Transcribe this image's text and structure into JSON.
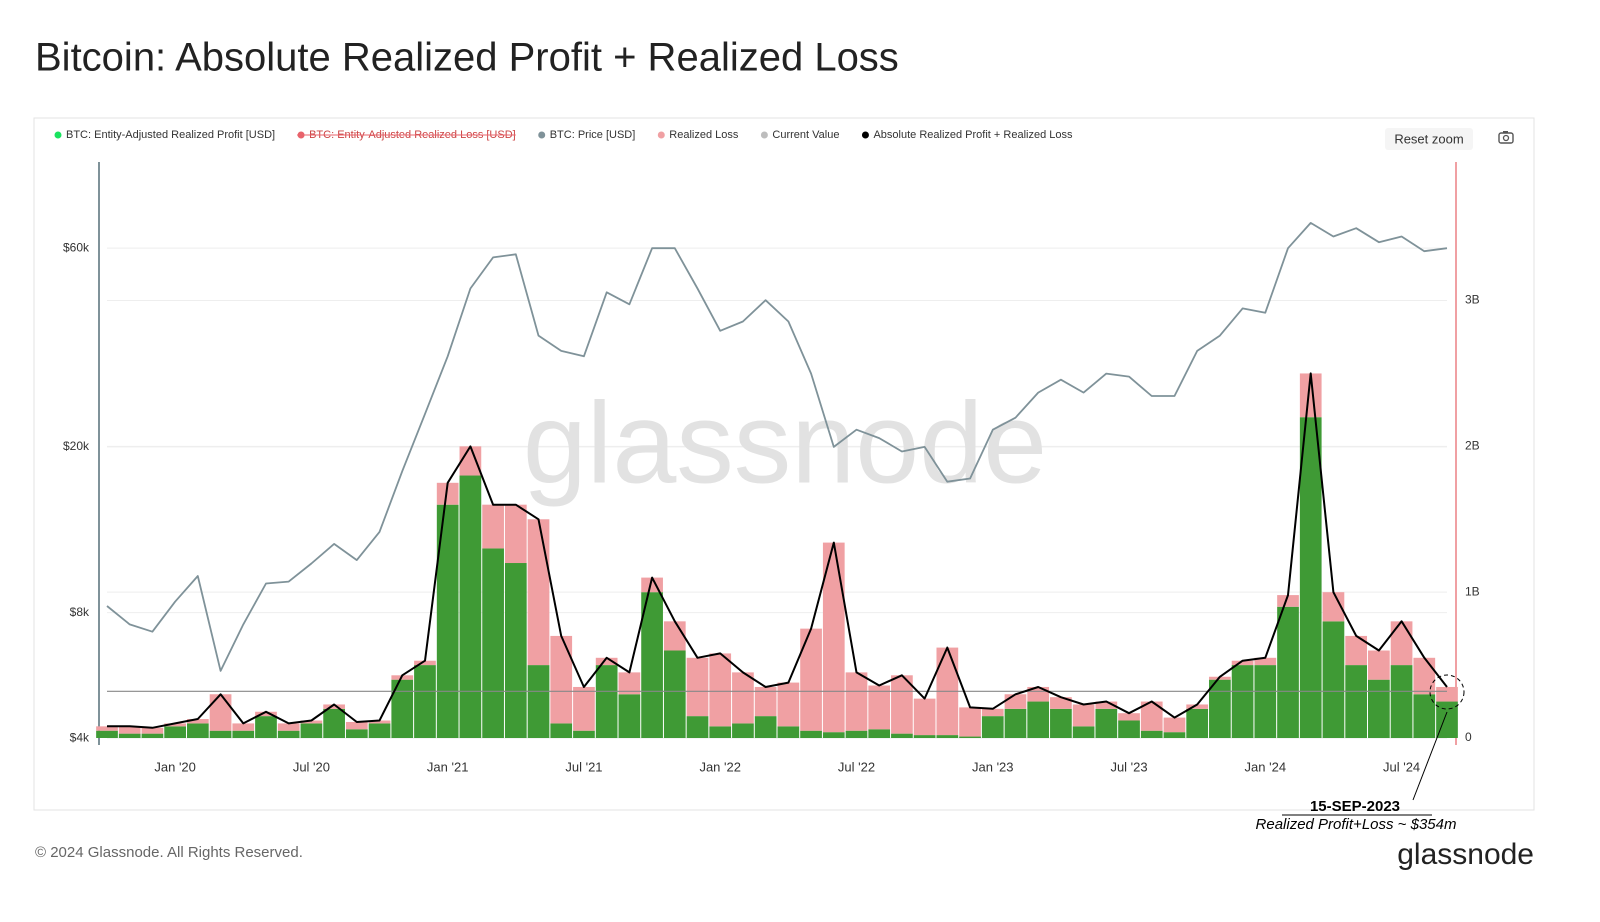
{
  "title": "Bitcoin: Absolute Realized Profit + Realized Loss",
  "button": "Reset zoom",
  "watermark": "glassnode",
  "copyright": "© 2024 Glassnode. All Rights Reserved.",
  "logo": "glassnode",
  "chart_data": {
    "type": "combo",
    "x": [
      "2019-10",
      "2019-11",
      "2019-12",
      "2020-01",
      "2020-02",
      "2020-03",
      "2020-04",
      "2020-05",
      "2020-06",
      "2020-07",
      "2020-08",
      "2020-09",
      "2020-10",
      "2020-11",
      "2020-12",
      "2021-01",
      "2021-02",
      "2021-03",
      "2021-04",
      "2021-05",
      "2021-06",
      "2021-07",
      "2021-08",
      "2021-09",
      "2021-10",
      "2021-11",
      "2021-12",
      "2022-01",
      "2022-02",
      "2022-03",
      "2022-04",
      "2022-05",
      "2022-06",
      "2022-07",
      "2022-08",
      "2022-09",
      "2022-10",
      "2022-11",
      "2022-12",
      "2023-01",
      "2023-02",
      "2023-03",
      "2023-04",
      "2023-05",
      "2023-06",
      "2023-07",
      "2023-08",
      "2023-09",
      "2023-10",
      "2023-11",
      "2023-12",
      "2024-01",
      "2024-02",
      "2024-03",
      "2024-04",
      "2024-05",
      "2024-06",
      "2024-07",
      "2024-08",
      "2024-09"
    ],
    "xlim": [
      "2019-10",
      "2024-09"
    ],
    "xticks": [
      {
        "value": "2020-01",
        "label": "Jan '20"
      },
      {
        "value": "2020-07",
        "label": "Jul '20"
      },
      {
        "value": "2021-01",
        "label": "Jan '21"
      },
      {
        "value": "2021-07",
        "label": "Jul '21"
      },
      {
        "value": "2022-01",
        "label": "Jan '22"
      },
      {
        "value": "2022-07",
        "label": "Jul '22"
      },
      {
        "value": "2023-01",
        "label": "Jan '23"
      },
      {
        "value": "2023-07",
        "label": "Jul '23"
      },
      {
        "value": "2024-01",
        "label": "Jan '24"
      },
      {
        "value": "2024-07",
        "label": "Jul '24"
      }
    ],
    "ylog": true,
    "ylim": [
      3850,
      96600
    ],
    "yticks": [
      {
        "value": 4000,
        "label": "$4k"
      },
      {
        "value": 8000,
        "label": "$8k"
      },
      {
        "value": 20000,
        "label": "$20k"
      },
      {
        "value": 60000,
        "label": "$60k"
      }
    ],
    "y2lim": [
      -48000000,
      3950000000
    ],
    "y2ticks": [
      0,
      {
        "value": 1000000000,
        "label": "1B"
      },
      {
        "value": 2000000000,
        "label": "2B"
      },
      {
        "value": 3000000000,
        "label": "3B"
      }
    ],
    "grid": true,
    "series": [
      {
        "name": "BTC: Entity-Adjusted Realized Profit [USD]",
        "color": "#3f9a35",
        "legend_color": "#19e35f",
        "style": "bar",
        "axis": "y2",
        "values": [
          50000000.0,
          30000000.0,
          30000000.0,
          80000000.0,
          100000000.0,
          50000000.0,
          50000000.0,
          150000000.0,
          50000000.0,
          100000000.0,
          200000000.0,
          60000000.0,
          100000000.0,
          400000000.0,
          500000000.0,
          1600000000.0,
          1800000000.0,
          1300000000.0,
          1200000000.0,
          500000000.0,
          100000000.0,
          50000000.0,
          500000000.0,
          300000000.0,
          1000000000.0,
          600000000.0,
          150000000.0,
          80000000.0,
          100000000.0,
          150000000.0,
          80000000.0,
          50000000.0,
          40000000.0,
          50000000.0,
          60000000.0,
          30000000.0,
          20000000.0,
          20000000.0,
          10000000.0,
          150000000.0,
          200000000.0,
          250000000.0,
          200000000.0,
          80000000.0,
          200000000.0,
          120000000.0,
          50000000.0,
          40000000.0,
          200000000.0,
          400000000.0,
          500000000.0,
          500000000.0,
          900000000.0,
          2200000000.0,
          800000000.0,
          500000000.0,
          400000000.0,
          500000000.0,
          300000000.0,
          250000000.0
        ]
      },
      {
        "name": "BTC: Entity-Adjusted Realized Loss [USD]",
        "color": "#e8636b",
        "hidden": true
      },
      {
        "name": "BTC: Price [USD]",
        "color": "#7f9299",
        "style": "line",
        "axis": "y",
        "values": [
          8300,
          7500,
          7200,
          8500,
          9800,
          5800,
          7500,
          9400,
          9500,
          10500,
          11700,
          10700,
          12500,
          17500,
          24000,
          33000,
          48000,
          57000,
          58000,
          37000,
          34000,
          33000,
          47000,
          44000,
          60000,
          60000,
          48000,
          38000,
          40000,
          45000,
          40000,
          30000,
          20000,
          22000,
          21000,
          19500,
          20000,
          16500,
          16800,
          22000,
          23500,
          27000,
          29000,
          27000,
          30000,
          29500,
          26500,
          26500,
          34000,
          37000,
          43000,
          42000,
          60000,
          69000,
          64000,
          67000,
          62000,
          64000,
          59000,
          60000
        ]
      },
      {
        "name": "Realized Loss",
        "color": "#f0a0a3",
        "style": "bar",
        "stacked": true,
        "axis": "y2",
        "values": [
          30000000.0,
          50000000.0,
          40000000.0,
          20000000.0,
          30000000.0,
          250000000.0,
          50000000.0,
          30000000.0,
          50000000.0,
          20000000.0,
          30000000.0,
          50000000.0,
          20000000.0,
          30000000.0,
          30000000.0,
          150000000.0,
          200000000.0,
          300000000.0,
          400000000.0,
          1000000000.0,
          600000000.0,
          300000000.0,
          50000000.0,
          150000000.0,
          100000000.0,
          200000000.0,
          400000000.0,
          500000000.0,
          350000000.0,
          200000000.0,
          300000000.0,
          700000000.0,
          1300000000.0,
          400000000.0,
          300000000.0,
          400000000.0,
          250000000.0,
          600000000.0,
          200000000.0,
          50000000.0,
          100000000.0,
          100000000.0,
          80000000.0,
          150000000.0,
          50000000.0,
          50000000.0,
          200000000.0,
          100000000.0,
          30000000.0,
          20000000.0,
          30000000.0,
          50000000.0,
          80000000.0,
          300000000.0,
          200000000.0,
          200000000.0,
          200000000.0,
          300000000.0,
          250000000.0,
          100000000.0
        ]
      },
      {
        "name": "Current Value",
        "color": "#bdbdbd",
        "style": "hline",
        "axis": "y2",
        "value": 320000000.0
      },
      {
        "name": "Absolute Realized Profit + Realized Loss",
        "color": "#000000",
        "style": "line",
        "axis": "y2",
        "values": [
          80000000.0,
          80000000.0,
          70000000.0,
          100000000.0,
          130000000.0,
          300000000.0,
          100000000.0,
          180000000.0,
          100000000.0,
          120000000.0,
          230000000.0,
          110000000.0,
          120000000.0,
          430000000.0,
          530000000.0,
          1750000000.0,
          2000000000.0,
          1600000000.0,
          1600000000.0,
          1500000000.0,
          700000000.0,
          350000000.0,
          550000000.0,
          450000000.0,
          1100000000.0,
          800000000.0,
          550000000.0,
          580000000.0,
          450000000.0,
          350000000.0,
          380000000.0,
          750000000.0,
          1340000000.0,
          450000000.0,
          360000000.0,
          430000000.0,
          270000000.0,
          620000000.0,
          210000000.0,
          200000000.0,
          300000000.0,
          350000000.0,
          280000000.0,
          230000000.0,
          250000000.0,
          170000000.0,
          250000000.0,
          140000000.0,
          230000000.0,
          420000000.0,
          530000000.0,
          550000000.0,
          980000000.0,
          2500000000.0,
          1000000000.0,
          700000000.0,
          600000000.0,
          800000000.0,
          550000000.0,
          350000000.0
        ]
      }
    ],
    "annotations": [
      {
        "text": "15-SEP-2023"
      },
      {
        "text": "Realized Profit+Loss ~ $354m"
      }
    ]
  }
}
